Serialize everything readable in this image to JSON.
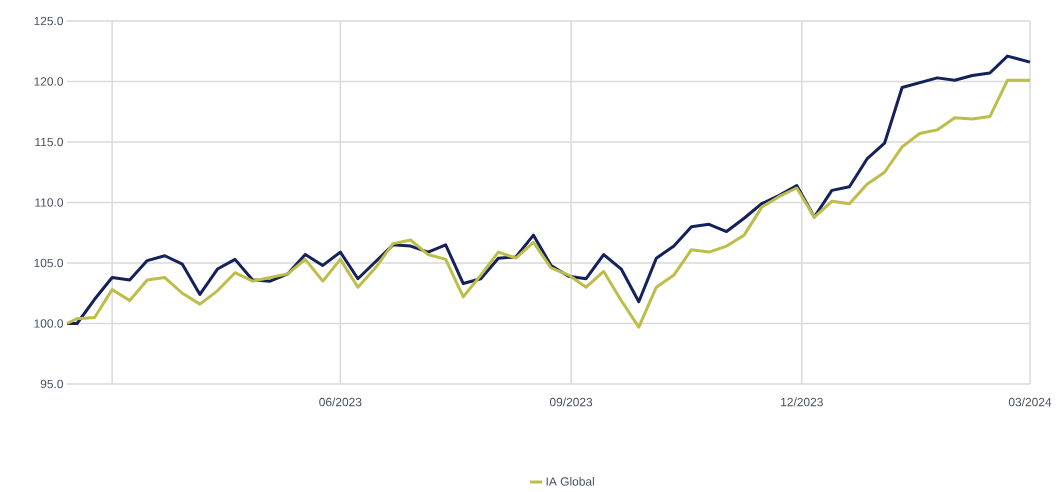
{
  "chart_data": {
    "type": "line",
    "x": [
      "2023-03-13",
      "2023-03-17",
      "2023-03-24",
      "2023-03-31",
      "2023-04-07",
      "2023-04-14",
      "2023-04-21",
      "2023-04-28",
      "2023-05-05",
      "2023-05-12",
      "2023-05-19",
      "2023-05-26",
      "2023-06-02",
      "2023-06-09",
      "2023-06-16",
      "2023-06-23",
      "2023-06-30",
      "2023-07-07",
      "2023-07-14",
      "2023-07-21",
      "2023-07-28",
      "2023-08-04",
      "2023-08-11",
      "2023-08-18",
      "2023-08-25",
      "2023-09-01",
      "2023-09-08",
      "2023-09-15",
      "2023-09-22",
      "2023-09-29",
      "2023-10-06",
      "2023-10-13",
      "2023-10-20",
      "2023-10-27",
      "2023-11-03",
      "2023-11-10",
      "2023-11-17",
      "2023-11-24",
      "2023-12-01",
      "2023-12-08",
      "2023-12-15",
      "2023-12-22",
      "2023-12-29",
      "2024-01-05",
      "2024-01-12",
      "2024-01-19",
      "2024-01-26",
      "2024-02-02",
      "2024-02-09",
      "2024-02-16",
      "2024-02-23",
      "2024-03-01",
      "2024-03-08",
      "2024-03-15",
      "2024-03-22",
      "2024-03-31"
    ],
    "series": [
      {
        "color": "#14215a",
        "values": [
          100.0,
          100.0,
          102.0,
          103.8,
          103.6,
          105.2,
          105.6,
          104.9,
          102.4,
          104.5,
          105.3,
          103.6,
          103.5,
          104.1,
          105.7,
          104.8,
          105.9,
          103.7,
          105.1,
          106.5,
          106.4,
          105.9,
          106.5,
          103.3,
          103.7,
          105.4,
          105.5,
          107.3,
          104.8,
          103.9,
          103.7,
          105.7,
          104.5,
          101.8,
          105.4,
          106.4,
          108.0,
          108.2,
          107.6,
          108.7,
          109.9,
          110.6,
          111.4,
          108.8,
          111.0,
          111.3,
          113.6,
          114.9,
          119.5,
          119.9,
          120.3,
          120.1,
          120.5,
          120.7,
          122.1,
          121.6
        ]
      },
      {
        "name": "IA Global",
        "color": "#bdbd4a",
        "values": [
          100.0,
          100.4,
          100.5,
          102.8,
          101.9,
          103.6,
          103.8,
          102.5,
          101.6,
          102.7,
          104.2,
          103.5,
          103.8,
          104.1,
          105.3,
          103.5,
          105.3,
          103.0,
          104.6,
          106.6,
          106.9,
          105.7,
          105.3,
          102.2,
          104.0,
          105.9,
          105.4,
          106.7,
          104.6,
          104.0,
          103.0,
          104.3,
          101.9,
          99.7,
          103.0,
          104.0,
          106.1,
          105.9,
          106.4,
          107.3,
          109.6,
          110.5,
          111.2,
          108.8,
          110.1,
          109.9,
          111.5,
          112.5,
          114.6,
          115.7,
          116.0,
          117.0,
          116.9,
          117.1,
          120.1,
          120.1
        ]
      }
    ],
    "xlim": [
      "2023-03-13",
      "2024-03-31"
    ],
    "xticks": [
      {
        "value": "2023-03-31",
        "label": null
      },
      {
        "value": "2023-06-30",
        "label": "06/2023"
      },
      {
        "value": "2023-09-30",
        "label": "09/2023"
      },
      {
        "value": "2023-12-31",
        "label": "12/2023"
      },
      {
        "value": "2024-03-31",
        "label": "03/2024"
      }
    ],
    "ylim": [
      95,
      125
    ],
    "yticks": [
      {
        "value": 95,
        "label": "95.0"
      },
      {
        "value": 100,
        "label": "100.0"
      },
      {
        "value": 105,
        "label": "105.0"
      },
      {
        "value": 110,
        "label": "110.0"
      },
      {
        "value": 115,
        "label": "115.0"
      },
      {
        "value": 120,
        "label": "120.0"
      },
      {
        "value": 125,
        "label": "125.0"
      }
    ],
    "grid": true,
    "legend": "bottom",
    "line_style": "solid",
    "marker": "none"
  }
}
